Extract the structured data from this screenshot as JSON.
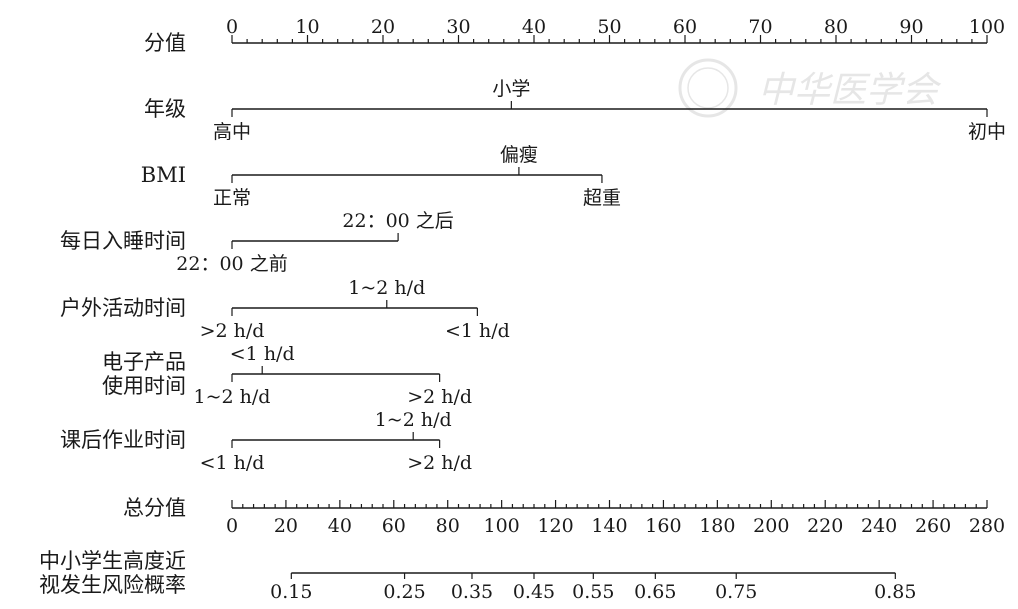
{
  "watermark": {
    "text": "中华医学会"
  },
  "chart_data": {
    "type": "nomogram",
    "points": {
      "label": "分值",
      "range": [
        0,
        100
      ],
      "major_step": 10,
      "minor_step": 2,
      "ticks": [
        "0",
        "10",
        "20",
        "30",
        "40",
        "50",
        "60",
        "70",
        "80",
        "90",
        "100"
      ]
    },
    "predictors": [
      {
        "label": [
          "年级"
        ],
        "levels": [
          {
            "name": "高中",
            "points": 0,
            "label_side": "below"
          },
          {
            "name": "小学",
            "points": 37,
            "label_side": "above"
          },
          {
            "name": "初中",
            "points": 100,
            "label_side": "below"
          }
        ]
      },
      {
        "label": [
          "BMI"
        ],
        "levels": [
          {
            "name": "正常",
            "points": 0,
            "label_side": "below"
          },
          {
            "name": "偏瘦",
            "points": 38,
            "label_side": "above"
          },
          {
            "name": "超重",
            "points": 49,
            "label_side": "below"
          }
        ]
      },
      {
        "label": [
          "每日入睡时间"
        ],
        "levels": [
          {
            "name": "22：00 之前",
            "points": 0,
            "label_side": "below"
          },
          {
            "name": "22：00 之后",
            "points": 22,
            "label_side": "above"
          }
        ]
      },
      {
        "label": [
          "户外活动时间"
        ],
        "levels": [
          {
            "name": ">2 h/d",
            "points": 0,
            "label_side": "below"
          },
          {
            "name": "1~2 h/d",
            "points": 20.5,
            "label_side": "above"
          },
          {
            "name": "<1 h/d",
            "points": 32.5,
            "label_side": "below"
          }
        ]
      },
      {
        "label": [
          "电子产品",
          "使用时间"
        ],
        "levels": [
          {
            "name": "1~2 h/d",
            "points": 0,
            "label_side": "below"
          },
          {
            "name": "<1 h/d",
            "points": 4,
            "label_side": "above"
          },
          {
            "name": ">2 h/d",
            "points": 27.5,
            "label_side": "below"
          }
        ]
      },
      {
        "label": [
          "课后作业时间"
        ],
        "levels": [
          {
            "name": "<1 h/d",
            "points": 0,
            "label_side": "below"
          },
          {
            "name": "1~2 h/d",
            "points": 24,
            "label_side": "above"
          },
          {
            "name": ">2 h/d",
            "points": 27.5,
            "label_side": "below"
          }
        ]
      }
    ],
    "total_points": {
      "label": "总分值",
      "range": [
        0,
        280
      ],
      "major_step": 20,
      "minor_step": 4,
      "ticks": [
        "0",
        "20",
        "40",
        "60",
        "80",
        "100",
        "120",
        "140",
        "160",
        "180",
        "200",
        "220",
        "240",
        "260",
        "280"
      ]
    },
    "probability": {
      "label": [
        "中小学生高度近",
        "视发生风险概率"
      ],
      "ticks": [
        {
          "value": "0.15",
          "total_points": 22
        },
        {
          "value": "0.25",
          "total_points": 64
        },
        {
          "value": "0.35",
          "total_points": 89
        },
        {
          "value": "0.45",
          "total_points": 112
        },
        {
          "value": "0.55",
          "total_points": 134
        },
        {
          "value": "0.65",
          "total_points": 157
        },
        {
          "value": "0.75",
          "total_points": 187
        },
        {
          "value": "0.85",
          "total_points": 246
        }
      ],
      "range_total_points": [
        22,
        246
      ]
    }
  }
}
